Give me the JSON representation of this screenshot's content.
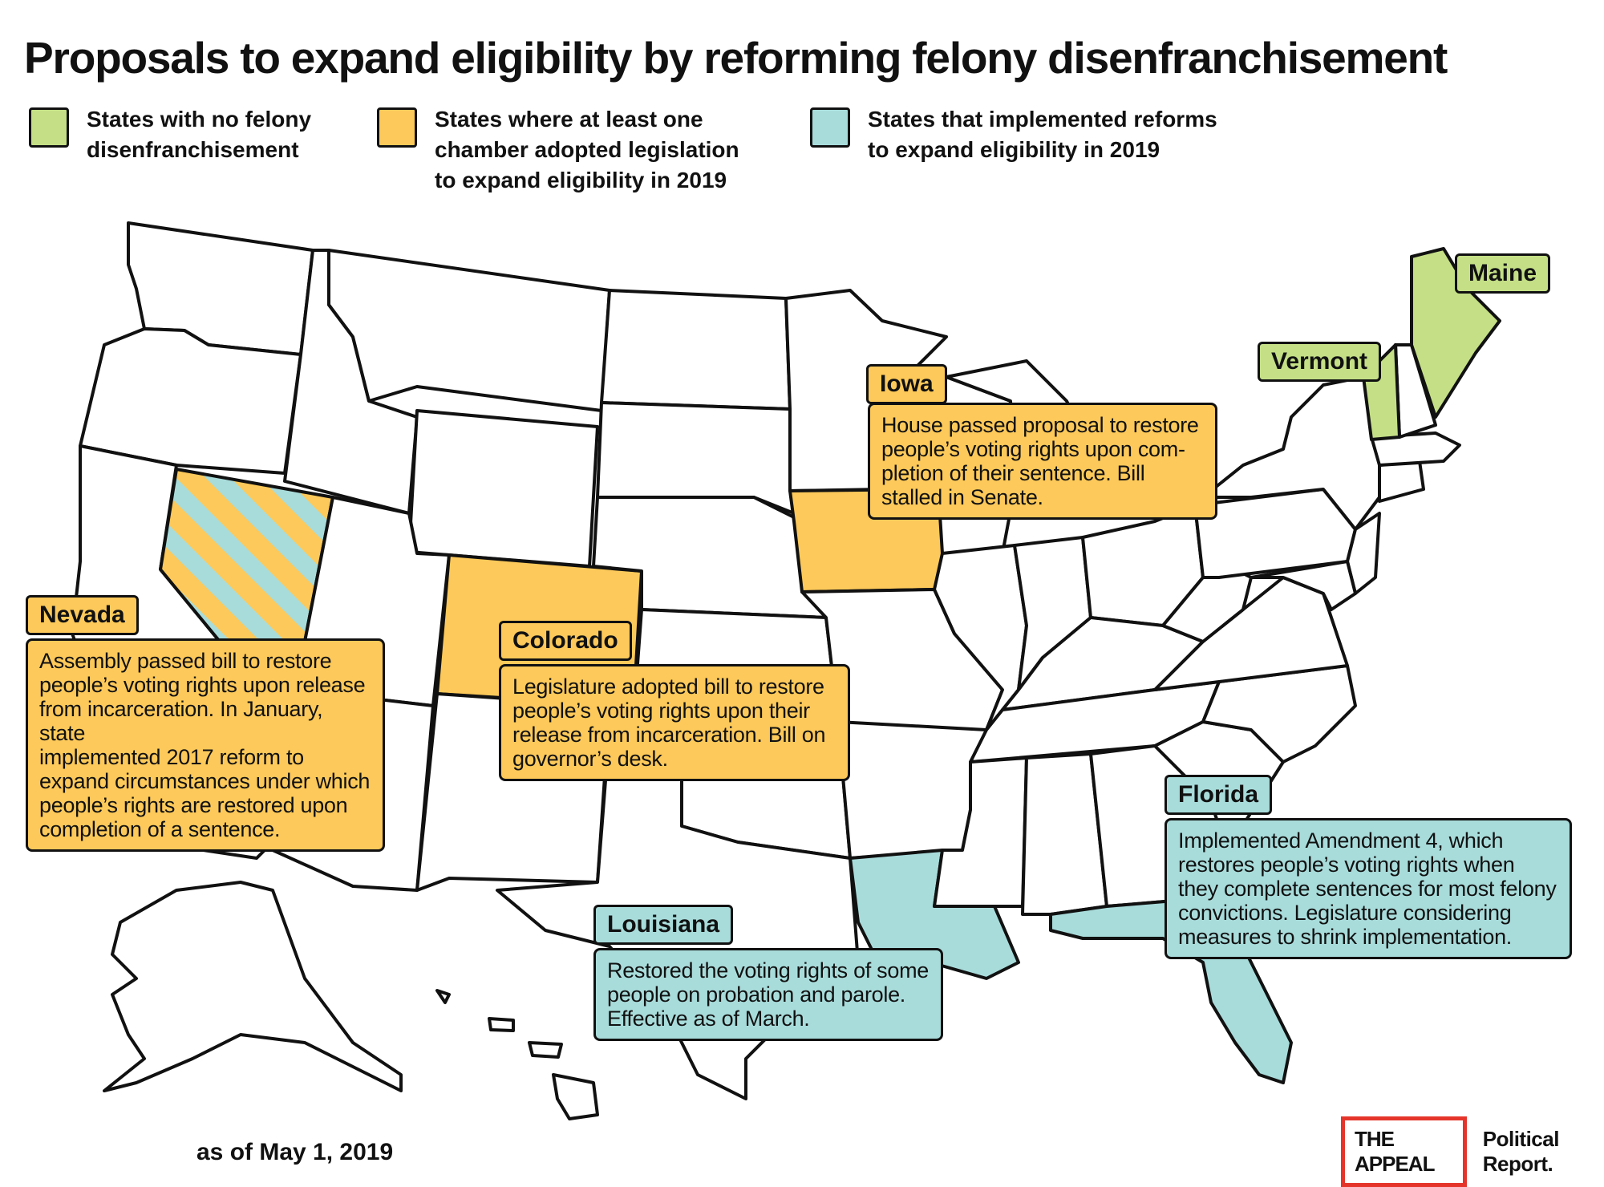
{
  "title": "Proposals to expand eligibility by reforming felony disenfranchisement",
  "colors": {
    "no_disenfranchisement": "#c4df86",
    "chamber_adopted": "#fcc95a",
    "implemented": "#a8dcdb",
    "outline": "#111111",
    "logo_red": "#e5352b"
  },
  "legend": [
    {
      "color_key": "no_disenfranchisement",
      "lines": [
        "States with no felony",
        "disenfranchisement"
      ]
    },
    {
      "color_key": "chamber_adopted",
      "lines": [
        "States where at least one",
        "chamber adopted legislation",
        "to expand eligibility in 2019"
      ]
    },
    {
      "color_key": "implemented",
      "lines": [
        "States that implemented reforms",
        "to expand eligibility in 2019"
      ]
    }
  ],
  "callouts": {
    "nevada": {
      "label": "Nevada",
      "lines": [
        "Assembly passed bill to restore",
        "people’s voting rights upon release",
        "from incarceration. In January, state",
        "implemented 2017 reform to",
        "expand circumstances under which",
        "people’s rights are restored upon",
        "completion of a sentence."
      ]
    },
    "colorado": {
      "label": "Colorado",
      "lines": [
        "Legislature adopted bill to restore",
        "people’s voting rights upon their",
        "release from incarceration. Bill on",
        "governor’s desk."
      ]
    },
    "iowa": {
      "label": "Iowa",
      "lines": [
        "House passed proposal to restore",
        "people’s voting rights upon com-",
        "pletion of their sentence. Bill",
        "stalled in Senate."
      ]
    },
    "louisiana": {
      "label": "Louisiana",
      "lines": [
        "Restored the voting rights of some",
        "people on probation and parole.",
        "Effective as of March."
      ]
    },
    "florida": {
      "label": "Florida",
      "lines": [
        "Implemented Amendment 4, which",
        "restores people’s voting rights when",
        "they complete sentences for most felony",
        "convictions. Legislature considering",
        "measures to shrink implementation."
      ]
    },
    "maine": {
      "label": "Maine"
    },
    "vermont": {
      "label": "Vermont"
    }
  },
  "as_of": "as of May 1, 2019",
  "logo": {
    "box_text": "THE APPEAL",
    "text": "Political Report."
  }
}
